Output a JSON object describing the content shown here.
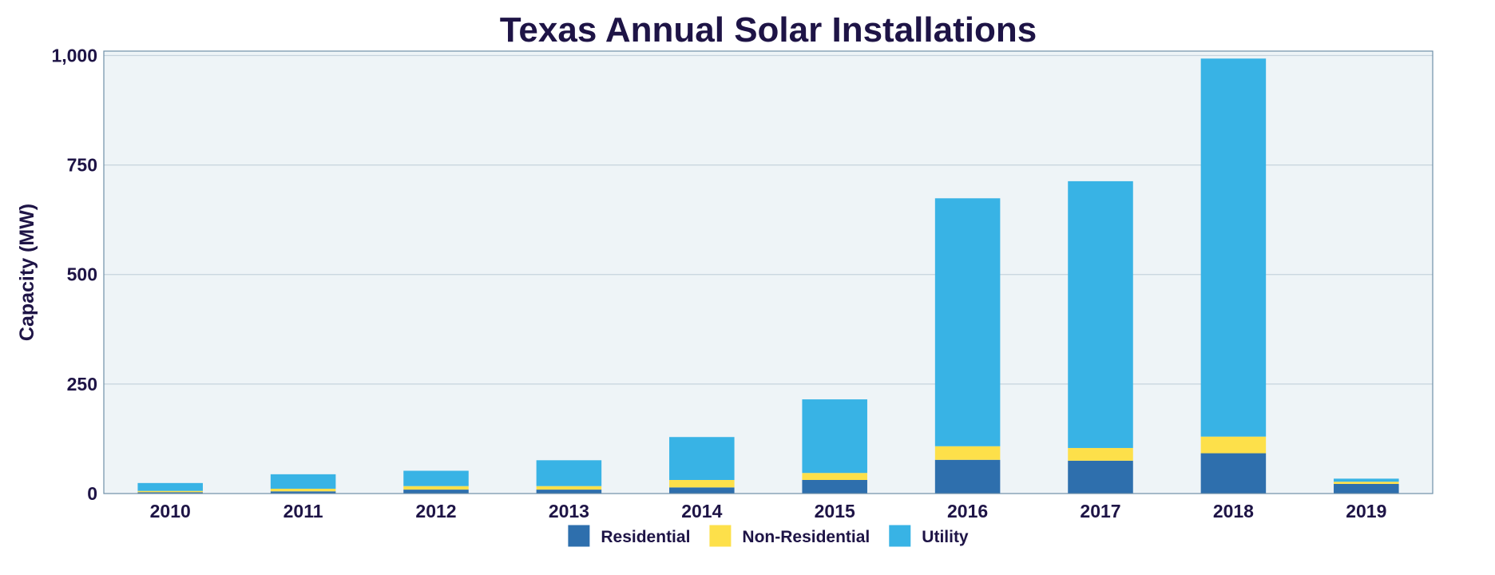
{
  "chart_data": {
    "type": "bar",
    "stacked": true,
    "title": "Texas Annual Solar Installations",
    "xlabel": "",
    "ylabel": "Capacity (MW)",
    "ylim": [
      0,
      1010
    ],
    "yticks": [
      0,
      250,
      500,
      750,
      1000
    ],
    "ytick_labels": [
      "0",
      "250",
      "500",
      "750",
      "1,000"
    ],
    "categories": [
      "2010",
      "2011",
      "2012",
      "2013",
      "2014",
      "2015",
      "2016",
      "2017",
      "2018",
      "2019"
    ],
    "series": [
      {
        "name": "Residential",
        "color": "#2e6fad",
        "values": [
          3,
          5,
          9,
          9,
          14,
          31,
          77,
          75,
          92,
          22
        ]
      },
      {
        "name": "Non-Residential",
        "color": "#fde04a",
        "values": [
          3,
          6,
          8,
          8,
          17,
          16,
          31,
          29,
          38,
          5
        ]
      },
      {
        "name": "Utility",
        "color": "#38b3e5",
        "values": [
          18,
          33,
          35,
          59,
          98,
          168,
          566,
          609,
          863,
          7
        ]
      }
    ],
    "grid": true,
    "legend_position": "bottom",
    "colors": {
      "text": "#1e1446",
      "plot_background": "#eef4f7",
      "gridline": "#c6d3dd",
      "plot_border": "#6f8fa8"
    }
  }
}
